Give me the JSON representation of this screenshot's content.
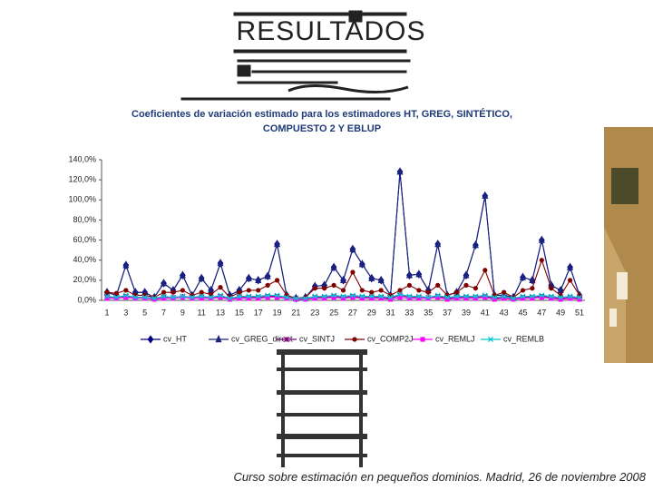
{
  "header": {
    "title": "RESULTADOS"
  },
  "chart_data": {
    "type": "line",
    "title": "Coeficientes de variación estimado para los estimadores HT, GREG, SINTÉTICO, COMPUESTO 2 Y EBLUP",
    "categories": [
      1,
      null,
      3,
      null,
      5,
      null,
      7,
      null,
      9,
      null,
      11,
      null,
      13,
      null,
      15,
      null,
      17,
      null,
      19,
      null,
      21,
      null,
      23,
      null,
      25,
      null,
      27,
      null,
      29,
      null,
      31,
      null,
      33,
      null,
      35,
      null,
      37,
      null,
      39,
      null,
      41,
      null,
      43,
      null,
      45,
      null,
      47,
      null,
      49,
      null,
      51
    ],
    "ylim": [
      0,
      140
    ],
    "yticks": [
      {
        "value": 0,
        "label": "0,0%"
      },
      {
        "value": 20,
        "label": "20,0%"
      },
      {
        "value": 40,
        "label": "40,0%"
      },
      {
        "value": 60,
        "label": "60,0%"
      },
      {
        "value": 80,
        "label": "80,0%"
      },
      {
        "value": 100,
        "label": "100,0%"
      },
      {
        "value": 120,
        "label": "120,0%"
      },
      {
        "value": 140,
        "label": "140,0%"
      }
    ],
    "grid": false,
    "series": [
      {
        "name": "cv_HT",
        "color": "#000080",
        "marker": "diamond",
        "values": [
          8,
          5,
          35,
          8,
          8,
          3,
          17,
          10,
          25,
          5,
          22,
          10,
          37,
          5,
          10,
          22,
          20,
          24,
          56,
          5,
          2,
          3,
          14,
          15,
          33,
          20,
          51,
          36,
          22,
          20,
          5,
          128,
          25,
          26,
          10,
          56,
          5,
          8,
          25,
          55,
          104,
          5,
          5,
          3,
          23,
          20,
          60,
          15,
          10,
          33,
          5
        ]
      },
      {
        "name": "cv_GREG_direct",
        "color": "#1a237e",
        "marker": "triangle",
        "values": [
          8,
          5,
          35,
          8,
          8,
          3,
          17,
          10,
          25,
          5,
          22,
          10,
          37,
          5,
          10,
          22,
          20,
          24,
          56,
          5,
          2,
          3,
          14,
          15,
          33,
          20,
          51,
          36,
          22,
          20,
          5,
          128,
          25,
          26,
          10,
          56,
          5,
          8,
          25,
          55,
          104,
          5,
          5,
          3,
          23,
          20,
          60,
          15,
          10,
          33,
          5
        ]
      },
      {
        "name": "cv_SINTJ",
        "color": "#800080",
        "marker": "star",
        "values": [
          3,
          3,
          4,
          3,
          3,
          2,
          3,
          3,
          4,
          3,
          3,
          3,
          4,
          2,
          3,
          3,
          3,
          4,
          4,
          3,
          2,
          2,
          3,
          3,
          4,
          3,
          4,
          3,
          3,
          3,
          2,
          5,
          3,
          3,
          3,
          4,
          2,
          3,
          3,
          3,
          4,
          2,
          3,
          2,
          3,
          3,
          4,
          3,
          2,
          3,
          2
        ]
      },
      {
        "name": "cv_COMP2J",
        "color": "#800000",
        "marker": "circle",
        "values": [
          8,
          7,
          10,
          5,
          5,
          3,
          8,
          8,
          10,
          5,
          8,
          6,
          13,
          3,
          8,
          10,
          10,
          15,
          20,
          5,
          2,
          3,
          12,
          12,
          15,
          10,
          28,
          10,
          8,
          10,
          5,
          10,
          15,
          10,
          8,
          15,
          5,
          8,
          15,
          12,
          30,
          5,
          8,
          3,
          10,
          12,
          40,
          12,
          5,
          20,
          5
        ]
      },
      {
        "name": "cv_REMLJ",
        "color": "#ff00ff",
        "marker": "square",
        "values": [
          2,
          2,
          3,
          2,
          2,
          1,
          2,
          2,
          3,
          2,
          2,
          2,
          3,
          1,
          2,
          2,
          2,
          3,
          3,
          2,
          1,
          1,
          2,
          2,
          3,
          2,
          3,
          2,
          2,
          2,
          1,
          3,
          2,
          2,
          2,
          3,
          1,
          2,
          2,
          2,
          3,
          1,
          2,
          1,
          2,
          2,
          3,
          2,
          1,
          2,
          1
        ]
      },
      {
        "name": "cv_REMLB",
        "color": "#00c8d2",
        "marker": "x",
        "values": [
          4,
          3,
          5,
          3,
          3,
          2,
          4,
          3,
          4,
          3,
          4,
          3,
          5,
          2,
          4,
          4,
          4,
          5,
          5,
          3,
          2,
          2,
          4,
          4,
          5,
          4,
          5,
          4,
          4,
          4,
          3,
          6,
          4,
          4,
          3,
          5,
          3,
          4,
          4,
          4,
          5,
          3,
          4,
          2,
          4,
          4,
          5,
          4,
          3,
          4,
          3
        ]
      }
    ]
  },
  "footer": {
    "text": "Curso sobre estimación en pequeños dominios. Madrid, 26 de noviembre 2008"
  }
}
